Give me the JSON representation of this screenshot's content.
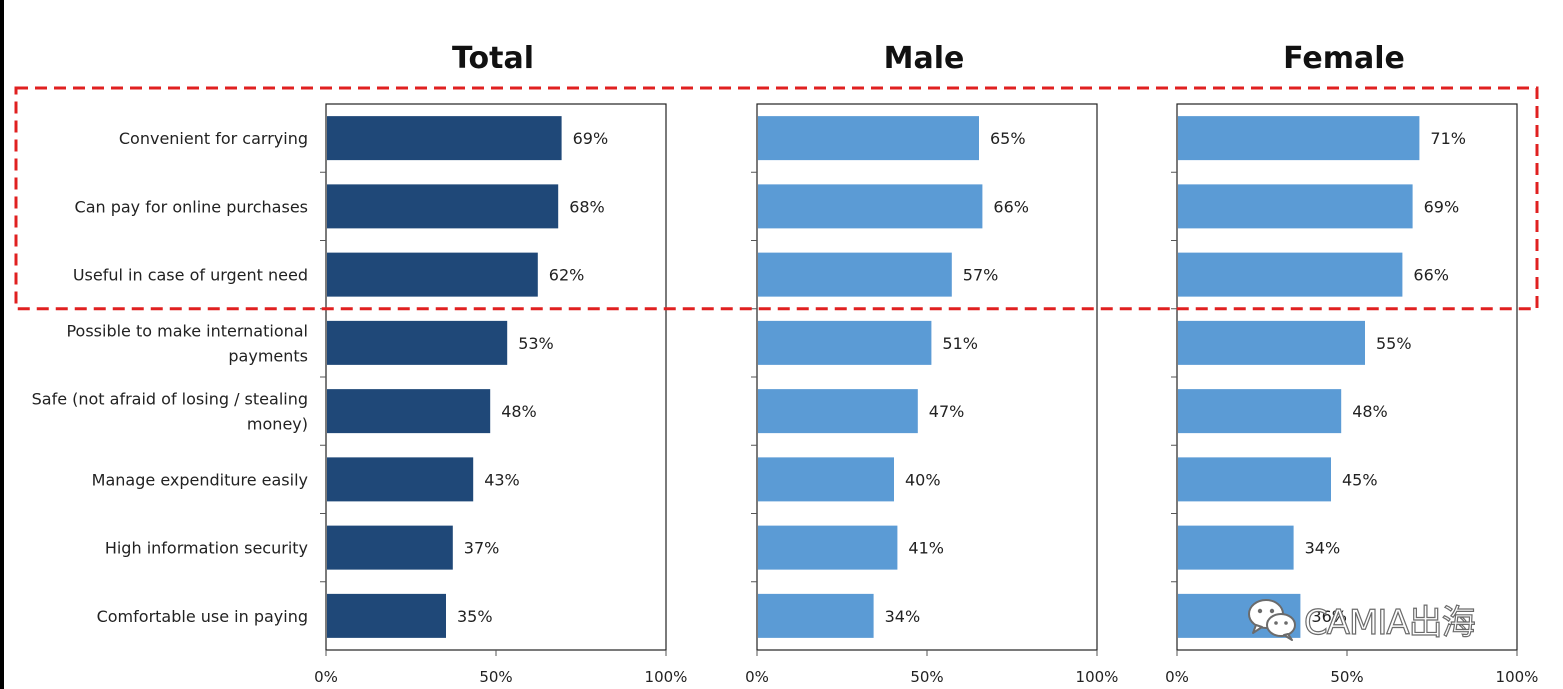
{
  "chart_data": {
    "type": "bar",
    "orientation": "horizontal",
    "categories": [
      [
        "Convenient for carrying"
      ],
      [
        "Can pay for online purchases"
      ],
      [
        "Useful in case of urgent need"
      ],
      [
        "Possible to make international",
        "payments"
      ],
      [
        "Safe (not afraid of losing / stealing",
        "money)"
      ],
      [
        "Manage expenditure easily"
      ],
      [
        "High information security"
      ],
      [
        "Comfortable use in paying"
      ]
    ],
    "xlim": [
      0,
      100
    ],
    "x_ticks": [
      "0%",
      "50%",
      "100%"
    ],
    "grid": false,
    "panels": [
      {
        "title": "Total",
        "color": "#1f4878",
        "values": [
          69,
          68,
          62,
          53,
          48,
          43,
          37,
          35
        ],
        "labels": [
          "69%",
          "68%",
          "62%",
          "53%",
          "48%",
          "43%",
          "37%",
          "35%"
        ]
      },
      {
        "title": "Male",
        "color": "#5b9bd5",
        "values": [
          65,
          66,
          57,
          51,
          47,
          40,
          41,
          34
        ],
        "labels": [
          "65%",
          "66%",
          "57%",
          "51%",
          "47%",
          "40%",
          "41%",
          "34%"
        ]
      },
      {
        "title": "Female",
        "color": "#5b9bd5",
        "values": [
          71,
          69,
          66,
          55,
          48,
          45,
          34,
          36
        ],
        "labels": [
          "71%",
          "69%",
          "66%",
          "55%",
          "48%",
          "45%",
          "34%",
          "36%"
        ]
      }
    ],
    "highlight": {
      "rows": [
        0,
        1,
        2
      ],
      "style": "dashed",
      "color": "#e02020"
    }
  },
  "watermark": {
    "text": "CAMIA出海",
    "icon": "wechat-icon"
  }
}
